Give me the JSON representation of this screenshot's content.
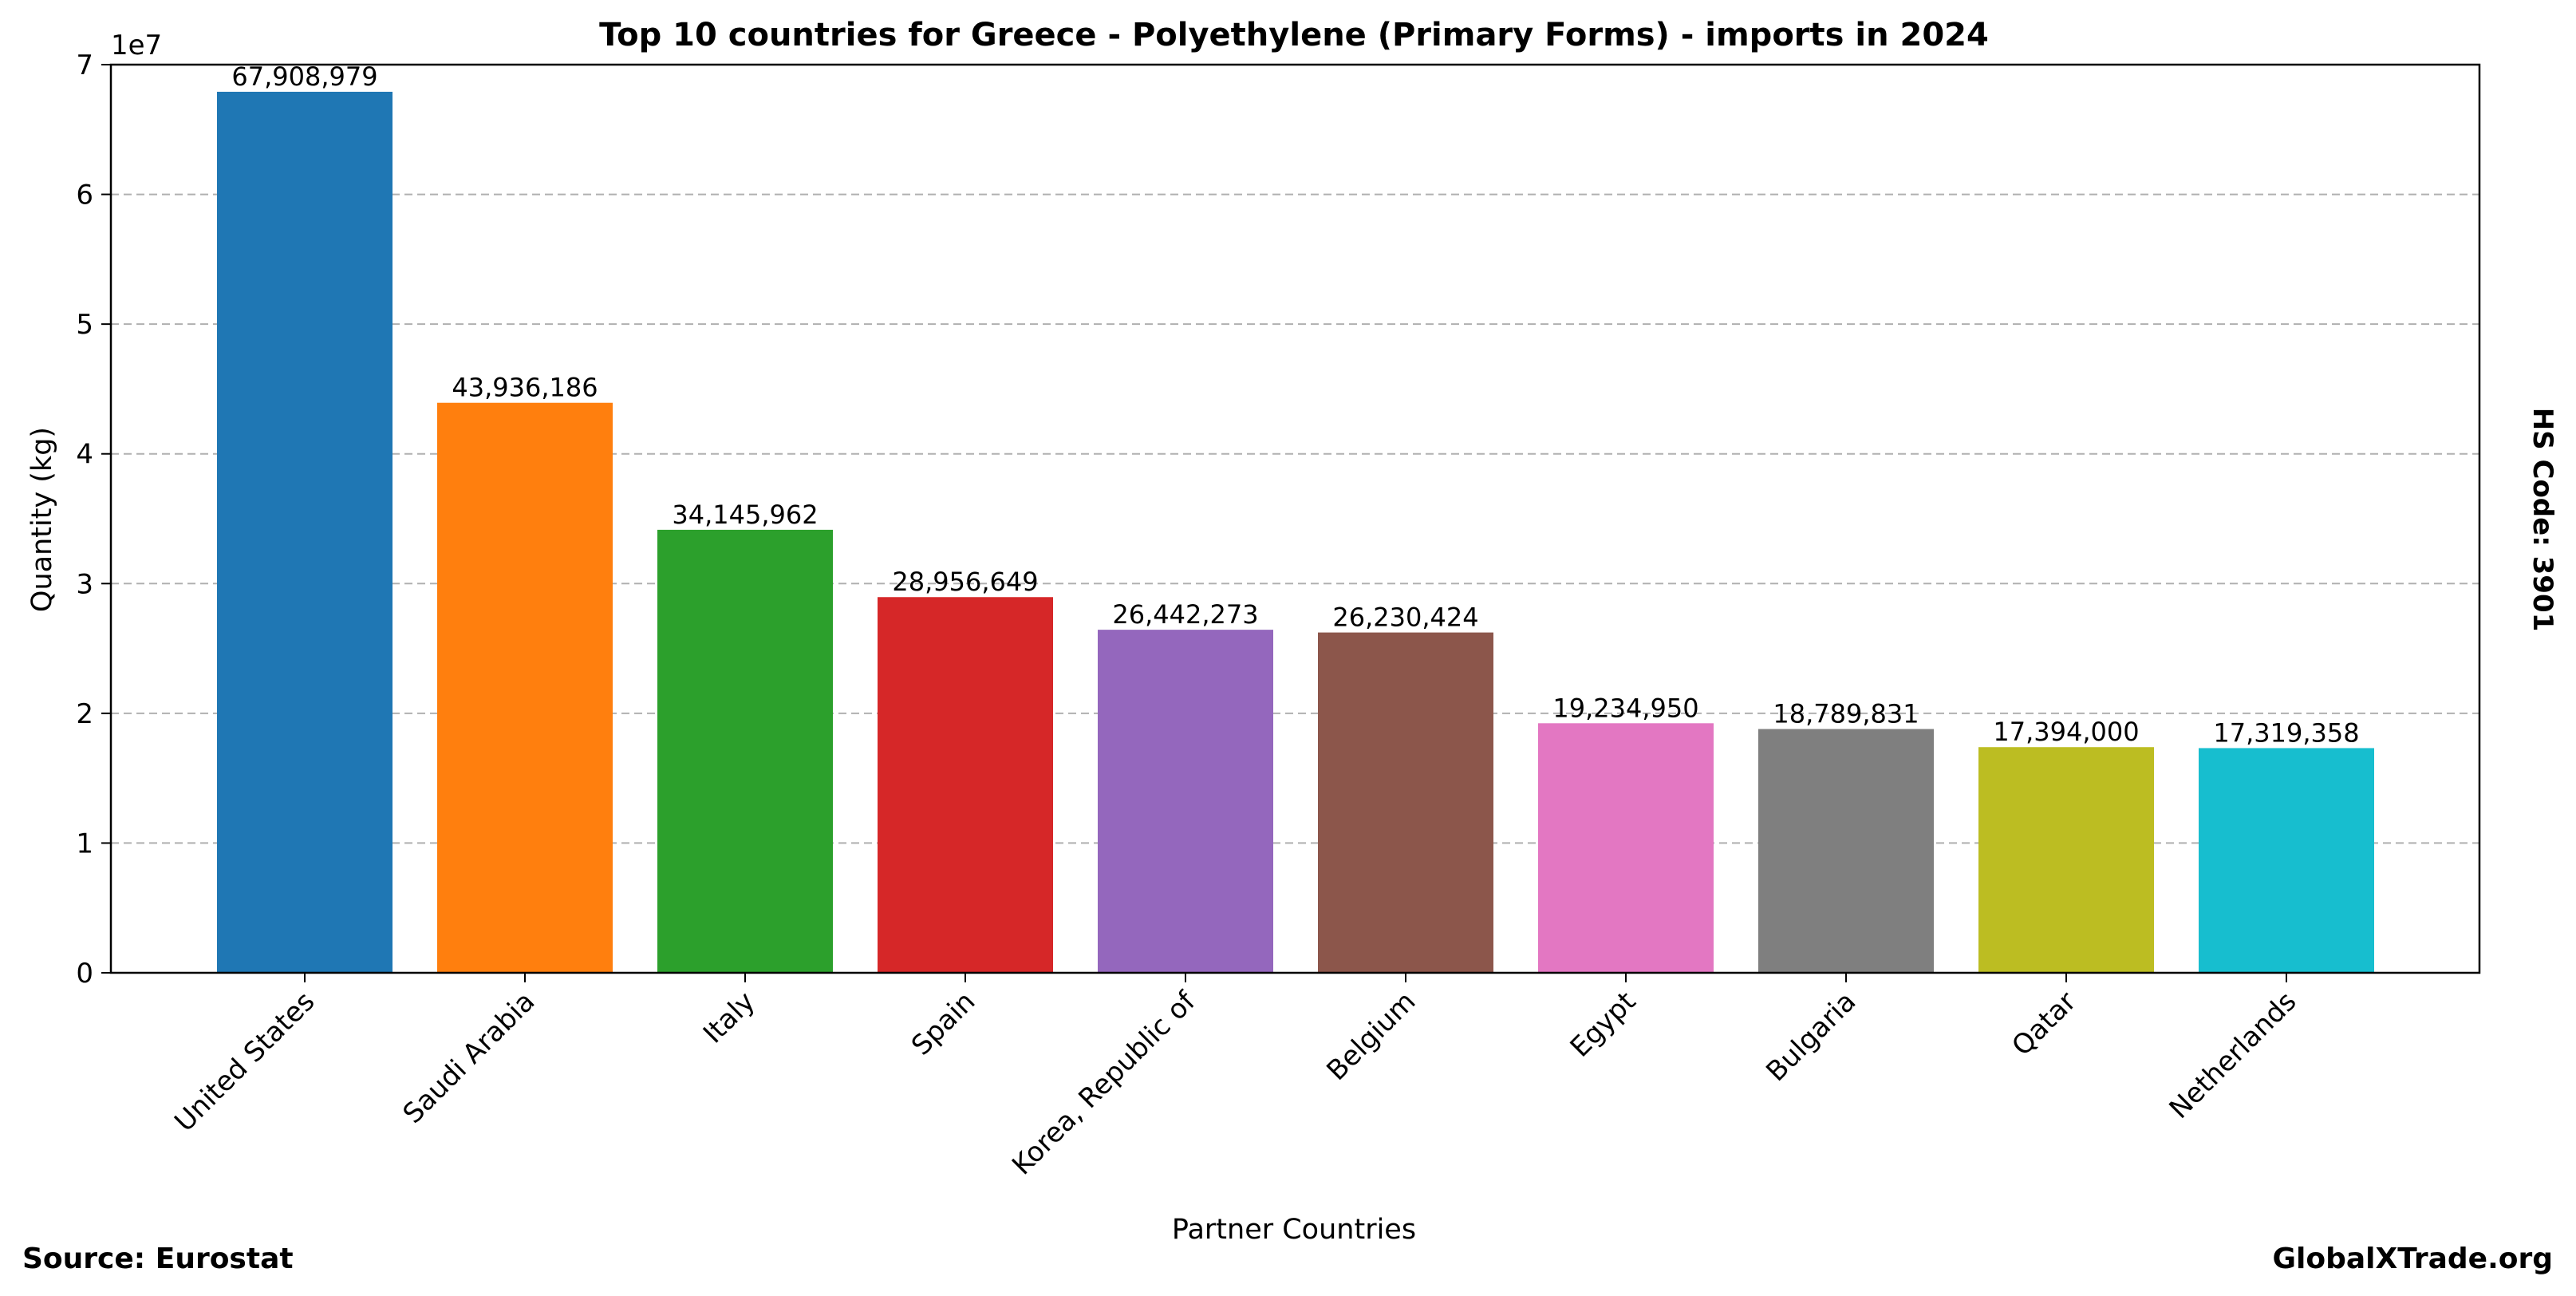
{
  "chart_data": {
    "type": "bar",
    "title": "Top 10 countries for Greece - Polyethylene (Primary Forms) - imports in 2024",
    "xlabel": "Partner Countries",
    "ylabel": "Quantity (kg)",
    "y_offset_label": "1e7",
    "ylim": [
      0,
      70000000
    ],
    "yticks": [
      0,
      10000000,
      20000000,
      30000000,
      40000000,
      50000000,
      60000000,
      70000000
    ],
    "ytick_labels": [
      "0",
      "1",
      "2",
      "3",
      "4",
      "5",
      "6",
      "7"
    ],
    "grid": "y-dashed",
    "categories": [
      "United States",
      "Saudi Arabia",
      "Italy",
      "Spain",
      "Korea, Republic of",
      "Belgium",
      "Egypt",
      "Bulgaria",
      "Qatar",
      "Netherlands"
    ],
    "values": [
      67908979,
      43936186,
      34145962,
      28956649,
      26442273,
      26230424,
      19234950,
      18789831,
      17394000,
      17319358
    ],
    "value_labels": [
      "67,908,979",
      "43,936,186",
      "34,145,962",
      "28,956,649",
      "26,442,273",
      "26,230,424",
      "19,234,950",
      "18,789,831",
      "17,394,000",
      "17,319,358"
    ],
    "colors": [
      "#1f77b4",
      "#ff7f0e",
      "#2ca02c",
      "#d62728",
      "#9467bd",
      "#8c564b",
      "#e377c2",
      "#7f7f7f",
      "#bcbd22",
      "#17becf"
    ]
  },
  "side_note": "HS Code: 3901",
  "footer": {
    "source": "Source: Eurostat",
    "brand": "GlobalXTrade.org"
  }
}
